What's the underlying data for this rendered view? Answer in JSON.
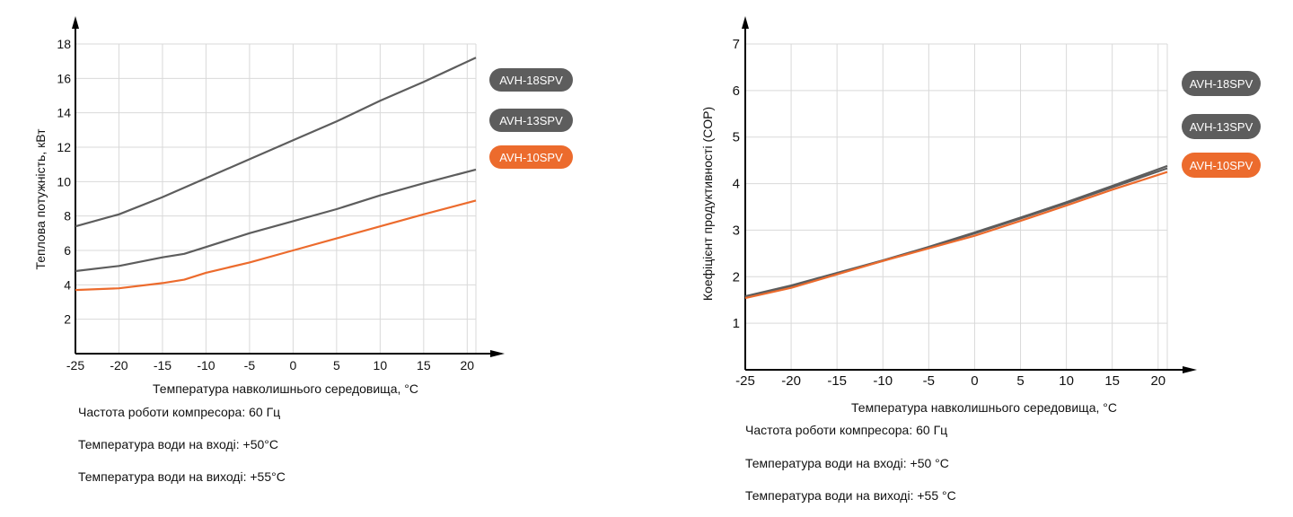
{
  "colors": {
    "grid": "#d9d9d9",
    "axis": "#000000",
    "series_dark": "#5d5d5d",
    "series_orange": "#ec6b2d",
    "legend_dark": "#5d5d5d",
    "legend_orange": "#ec6b2d"
  },
  "chart_data": [
    {
      "type": "line",
      "title": "",
      "xlabel": "Температура навколишнього середовища, °С",
      "ylabel": "Теплова потужність, кВт",
      "xlim": [
        -25,
        21
      ],
      "ylim": [
        0,
        18
      ],
      "xticks": [
        "-25",
        "-20",
        "-15",
        "-10",
        "-5",
        "0",
        "5",
        "10",
        "15",
        "20"
      ],
      "yticks": [
        "2",
        "4",
        "6",
        "8",
        "10",
        "12",
        "14",
        "16",
        "18"
      ],
      "grid": true,
      "legend_position": "right",
      "series": [
        {
          "name": "AVH-18SPV",
          "color": "#5d5d5d",
          "x": [
            -25,
            -20,
            -15,
            -10,
            -5,
            0,
            5,
            10,
            15,
            21
          ],
          "y": [
            7.4,
            8.1,
            9.1,
            10.2,
            11.3,
            12.4,
            13.5,
            14.7,
            15.8,
            17.2
          ]
        },
        {
          "name": "AVH-13SPV",
          "color": "#5d5d5d",
          "x": [
            -25,
            -20,
            -15,
            -12.5,
            -10,
            -5,
            0,
            5,
            10,
            15,
            21
          ],
          "y": [
            4.8,
            5.1,
            5.6,
            5.8,
            6.2,
            7.0,
            7.7,
            8.4,
            9.2,
            9.9,
            10.7
          ]
        },
        {
          "name": "AVH-10SPV",
          "color": "#ec6b2d",
          "x": [
            -25,
            -20,
            -15,
            -12.5,
            -10,
            -5,
            0,
            5,
            10,
            15,
            21
          ],
          "y": [
            3.7,
            3.8,
            4.1,
            4.3,
            4.7,
            5.3,
            6.0,
            6.7,
            7.4,
            8.1,
            8.9
          ]
        }
      ]
    },
    {
      "type": "line",
      "title": "",
      "xlabel": "Температура навколишнього середовища, °С",
      "ylabel": "Коефіцієнт продуктивності (COP)",
      "xlim": [
        -25,
        21
      ],
      "ylim": [
        0,
        7
      ],
      "xticks": [
        "-25",
        "-20",
        "-15",
        "-10",
        "-5",
        "0",
        "5",
        "10",
        "15",
        "20"
      ],
      "yticks": [
        "1",
        "2",
        "3",
        "4",
        "5",
        "6",
        "7"
      ],
      "grid": true,
      "legend_position": "right",
      "series": [
        {
          "name": "AVH-18SPV",
          "color": "#5d5d5d",
          "x": [
            -25,
            -20,
            -15,
            -10,
            -5,
            0,
            5,
            10,
            15,
            21
          ],
          "y": [
            1.58,
            1.81,
            2.08,
            2.35,
            2.64,
            2.95,
            3.27,
            3.6,
            3.95,
            4.38
          ]
        },
        {
          "name": "AVH-13SPV",
          "color": "#5d5d5d",
          "x": [
            -25,
            -20,
            -15,
            -10,
            -5,
            0,
            5,
            10,
            15,
            21
          ],
          "y": [
            1.57,
            1.79,
            2.07,
            2.34,
            2.63,
            2.93,
            3.25,
            3.58,
            3.92,
            4.33
          ]
        },
        {
          "name": "AVH-10SPV",
          "color": "#ec6b2d",
          "x": [
            -25,
            -20,
            -15,
            -10,
            -5,
            0,
            5,
            10,
            15,
            21
          ],
          "y": [
            1.54,
            1.76,
            2.05,
            2.34,
            2.61,
            2.88,
            3.2,
            3.53,
            3.87,
            4.25
          ]
        }
      ]
    }
  ],
  "legend": [
    {
      "label": "AVH-18SPV",
      "color": "#5d5d5d"
    },
    {
      "label": "AVH-13SPV",
      "color": "#5d5d5d"
    },
    {
      "label": "AVH-10SPV",
      "color": "#ec6b2d"
    }
  ],
  "notes": {
    "chart1": {
      "compressor": "Частота роботи компресора: 60 Гц",
      "water_in": "Температура води на вході: +50°С",
      "water_out": "Температура води на виході: +55°С"
    },
    "chart2": {
      "compressor": "Частота роботи компресора: 60 Гц",
      "water_in": "Температура води на вході: +50 °С",
      "water_out": "Температура води на виході: +55 °С"
    }
  }
}
